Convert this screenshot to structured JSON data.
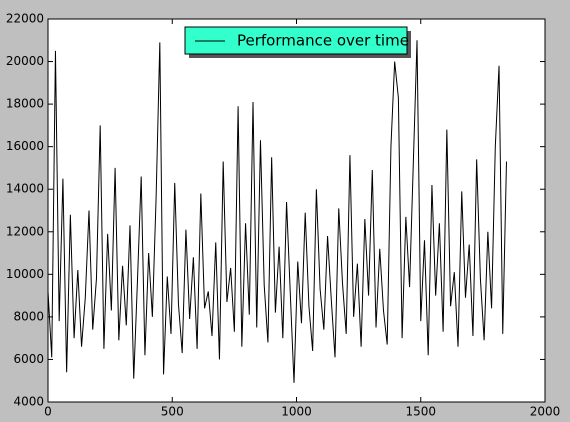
{
  "chart_data": {
    "type": "line",
    "x": [
      0,
      15,
      30,
      45,
      60,
      75,
      90,
      105,
      120,
      135,
      150,
      165,
      180,
      195,
      210,
      225,
      240,
      255,
      270,
      285,
      300,
      315,
      330,
      345,
      360,
      375,
      390,
      405,
      420,
      435,
      450,
      465,
      480,
      495,
      510,
      525,
      540,
      555,
      570,
      585,
      600,
      615,
      630,
      645,
      660,
      675,
      690,
      705,
      720,
      735,
      750,
      765,
      780,
      795,
      810,
      825,
      840,
      855,
      870,
      885,
      900,
      915,
      930,
      945,
      960,
      975,
      990,
      1005,
      1020,
      1035,
      1050,
      1065,
      1080,
      1095,
      1110,
      1125,
      1140,
      1155,
      1170,
      1185,
      1200,
      1215,
      1230,
      1245,
      1260,
      1275,
      1290,
      1305,
      1320,
      1335,
      1350,
      1365,
      1380,
      1395,
      1410,
      1425,
      1440,
      1455,
      1470,
      1485,
      1500,
      1515,
      1530,
      1545,
      1560,
      1575,
      1590,
      1605,
      1620,
      1635,
      1650,
      1665,
      1680,
      1695,
      1710,
      1725,
      1740,
      1755,
      1770,
      1785,
      1800,
      1815,
      1830,
      1845
    ],
    "series": [
      {
        "name": "Performance over time",
        "color": "#000000",
        "values": [
          9200,
          6100,
          20500,
          7800,
          14500,
          5400,
          12800,
          7000,
          10200,
          6600,
          8900,
          13000,
          7400,
          9800,
          17000,
          6500,
          11900,
          8300,
          15000,
          6900,
          10400,
          7600,
          12300,
          5100,
          9700,
          14600,
          6200,
          11000,
          8000,
          13600,
          20900,
          5300,
          9900,
          7200,
          14300,
          8600,
          6300,
          12100,
          7900,
          10800,
          6500,
          13800,
          8400,
          9200,
          7100,
          11500,
          6000,
          15300,
          8700,
          10300,
          7300,
          17900,
          6600,
          12400,
          8100,
          18100,
          7500,
          16300,
          9500,
          6800,
          15500,
          8200,
          11300,
          7000,
          13400,
          9100,
          4900,
          10600,
          7700,
          12900,
          8500,
          6400,
          14000,
          9300,
          7400,
          11800,
          8800,
          6100,
          13100,
          9600,
          7200,
          15600,
          8000,
          10500,
          6600,
          12600,
          9000,
          14900,
          7500,
          11200,
          8300,
          6700,
          16000,
          20000,
          18300,
          7000,
          12700,
          9400,
          15200,
          21000,
          7800,
          11600,
          6200,
          14200,
          9000,
          12400,
          7300,
          16800,
          8500,
          10100,
          6600,
          13900,
          8900,
          11400,
          7100,
          15400,
          9800,
          6900,
          12000,
          8400,
          16000,
          19800,
          7200,
          15300
        ]
      }
    ],
    "xlim": [
      0,
      2000
    ],
    "xticks": [
      0,
      500,
      1000,
      1500,
      2000
    ],
    "ylim": [
      4000,
      22000
    ],
    "yticks": [
      4000,
      6000,
      8000,
      10000,
      12000,
      14000,
      16000,
      18000,
      20000,
      22000
    ],
    "legend": "upper center"
  }
}
